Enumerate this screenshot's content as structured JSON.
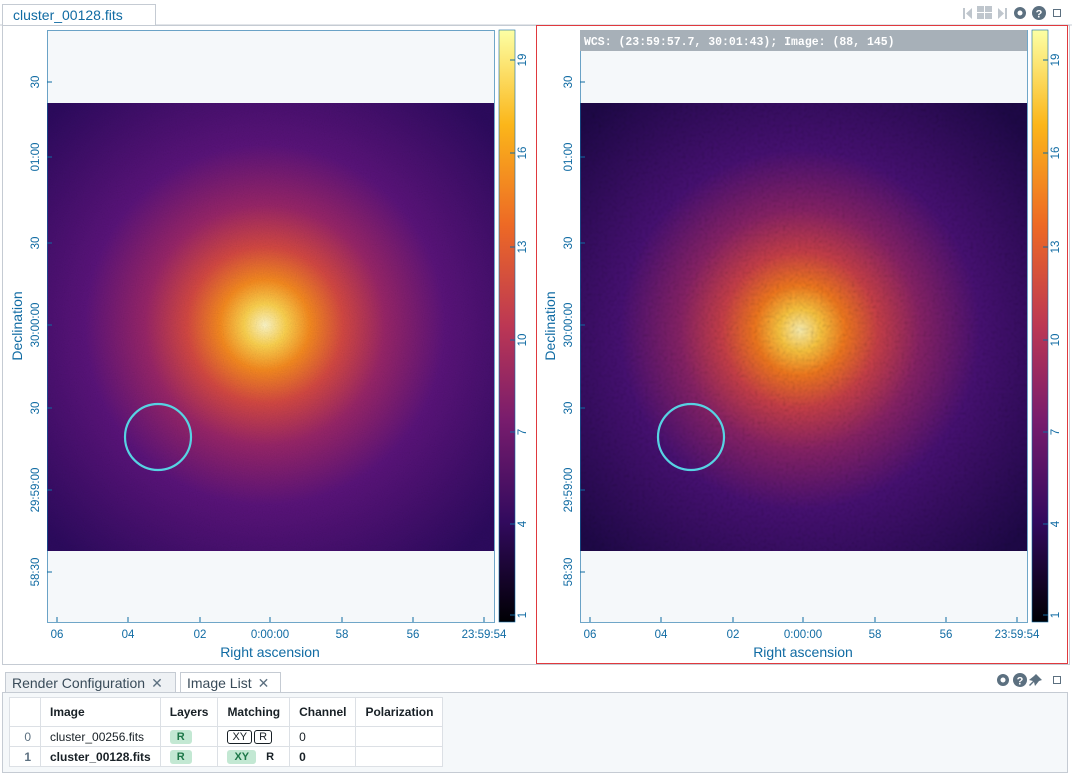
{
  "tab": "cluster_00128.fits",
  "panels": [
    {
      "y_label": "Declination",
      "x_label": "Right ascension",
      "y_ticks": [
        "30",
        "01:00",
        "30",
        "30:00:00",
        "30",
        "29:59:00",
        "58:30"
      ],
      "x_ticks": [
        "06",
        "04",
        "02",
        "0:00:00",
        "58",
        "56",
        "23:59:54"
      ],
      "colorbar_ticks": [
        1,
        4,
        7,
        10,
        13,
        16,
        19
      ]
    },
    {
      "cursor_info": "WCS: (23:59:57.7, 30:01:43); Image: (88, 145)",
      "y_label": "Declination",
      "x_label": "Right ascension",
      "y_ticks": [
        "30",
        "01:00",
        "30",
        "30:00:00",
        "30",
        "29:59:00",
        "58:30"
      ],
      "x_ticks": [
        "06",
        "04",
        "02",
        "0:00:00",
        "58",
        "56",
        "23:59:54"
      ],
      "colorbar_ticks": [
        1,
        4,
        7,
        10,
        13,
        16,
        19
      ]
    }
  ],
  "bottom_tabs": [
    "Render Configuration",
    "Image List"
  ],
  "image_list": {
    "columns": [
      "Image",
      "Layers",
      "Matching",
      "Channel",
      "Polarization"
    ],
    "rows": [
      {
        "index": 0,
        "image": "cluster_00256.fits",
        "layers": "R",
        "matching": [
          "XY",
          "R"
        ],
        "channel": 0
      },
      {
        "index": 1,
        "image": "cluster_00128.fits",
        "layers": "R",
        "matching": [
          "XY",
          "R"
        ],
        "channel": 0
      }
    ]
  }
}
